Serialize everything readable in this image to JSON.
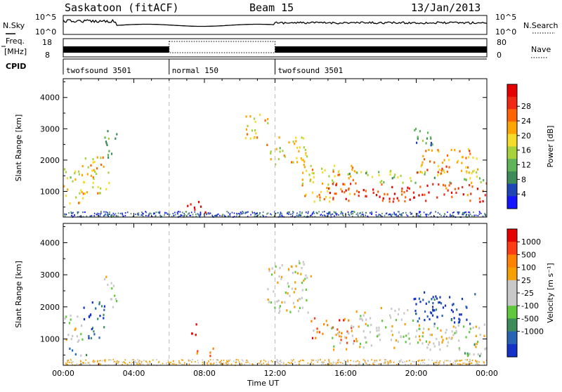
{
  "header": {
    "title": "Saskatoon (fitACF)",
    "beam": "Beam 15",
    "date": "13/Jan/2013"
  },
  "top_strip": {
    "nsky_label": "N.Sky",
    "nsearch_label": "N.Search",
    "nsky_ticks": [
      "10^5",
      "10^0"
    ],
    "nsearch_ticks": [
      "10^5",
      "10^0"
    ],
    "freq_label": "Freq.",
    "freq_unit": "[MHz]",
    "freq_ticks": [
      "18",
      "8"
    ],
    "nave_label": "Nave",
    "nave_ticks": [
      "80",
      "0"
    ],
    "cpid_label": "CPID",
    "cpid_segments": [
      {
        "name": "twofsound 3501",
        "start_hr": 0,
        "end_hr": 6
      },
      {
        "name": "normal 150",
        "start_hr": 6,
        "end_hr": 12
      },
      {
        "name": "twofsound 3501",
        "start_hr": 12,
        "end_hr": 24
      }
    ]
  },
  "x_axis": {
    "label": "Time UT",
    "tick_labels": [
      "00:00",
      "04:00",
      "08:00",
      "12:00",
      "16:00",
      "20:00",
      "00:00"
    ]
  },
  "chart_data": [
    {
      "type": "heatmap",
      "name": "power",
      "ylabel": "Slant Range [km]",
      "ylim": [
        180,
        4600
      ],
      "xlim_hours": [
        0,
        24
      ],
      "y_ticks": [
        1000,
        2000,
        3000,
        4000
      ],
      "colorbar_label": "Power [dB]",
      "colorbar_ticks": [
        "4",
        "8",
        "12",
        "16",
        "20",
        "24",
        "28"
      ],
      "colorbar_colors": [
        "#1414ff",
        "#1e46b4",
        "#3c8c5a",
        "#5fb45a",
        "#a8d23c",
        "#f5dc28",
        "#ffa500",
        "#ff6400",
        "#f02814",
        "#e60000"
      ],
      "dashed_vlines_hours": [
        6,
        12
      ],
      "regions": [
        {
          "t0": 0.0,
          "t1": 1.2,
          "r0": 600,
          "r1": 1800,
          "level": 0.55
        },
        {
          "t0": 1.0,
          "t1": 2.6,
          "r0": 900,
          "r1": 2200,
          "level": 0.6
        },
        {
          "t0": 2.3,
          "t1": 3.0,
          "r0": 2000,
          "r1": 3000,
          "level": 0.3
        },
        {
          "t0": 7.0,
          "t1": 8.1,
          "r0": 350,
          "r1": 750,
          "level": 0.95
        },
        {
          "t0": 10.2,
          "t1": 11.6,
          "r0": 2700,
          "r1": 3500,
          "level": 0.6
        },
        {
          "t0": 11.5,
          "t1": 13.8,
          "r0": 1800,
          "r1": 2800,
          "level": 0.55
        },
        {
          "t0": 13.5,
          "t1": 16.5,
          "r0": 700,
          "r1": 1900,
          "level": 0.6
        },
        {
          "t0": 15.0,
          "t1": 24.0,
          "r0": 700,
          "r1": 1300,
          "level": 0.85
        },
        {
          "t0": 16.0,
          "t1": 24.0,
          "r0": 1300,
          "r1": 1700,
          "level": 0.45
        },
        {
          "t0": 20.0,
          "t1": 23.5,
          "r0": 1600,
          "r1": 2400,
          "level": 0.7
        },
        {
          "t0": 19.5,
          "t1": 21.0,
          "r0": 2500,
          "r1": 3100,
          "level": 0.3
        }
      ]
    },
    {
      "type": "heatmap",
      "name": "velocity",
      "ylabel": "Slant Range [km]",
      "ylim": [
        180,
        4600
      ],
      "xlim_hours": [
        0,
        24
      ],
      "y_ticks": [
        1000,
        2000,
        3000,
        4000
      ],
      "colorbar_label": "Velocity [m s⁻¹]",
      "colorbar_ticks": [
        "1000",
        "500",
        "100",
        "25",
        "-25",
        "-100",
        "-500",
        "-1000"
      ],
      "colorbar_colors": [
        "#1432c8",
        "#2864b4",
        "#3c8c5a",
        "#5fc83c",
        "#c8c8c8",
        "#c8c8c8",
        "#f5a000",
        "#ff8200",
        "#ff3c14",
        "#e60000"
      ],
      "dashed_vlines_hours": [
        6,
        12
      ],
      "regions": [
        {
          "t0": 0.0,
          "t1": 1.2,
          "r0": 900,
          "r1": 1800,
          "level": 0.5
        },
        {
          "t0": 0.3,
          "t1": 1.3,
          "r0": 500,
          "r1": 800,
          "level": 0.3
        },
        {
          "t0": 1.0,
          "t1": 2.3,
          "r0": 1000,
          "r1": 2200,
          "level": 0.15
        },
        {
          "t0": 2.3,
          "t1": 3.0,
          "r0": 2000,
          "r1": 3000,
          "level": 0.5
        },
        {
          "t0": 7.1,
          "t1": 7.6,
          "r0": 1000,
          "r1": 1500,
          "level": 0.9
        },
        {
          "t0": 7.5,
          "t1": 8.5,
          "r0": 450,
          "r1": 750,
          "level": 0.72
        },
        {
          "t0": 11.5,
          "t1": 14.0,
          "r0": 1800,
          "r1": 3500,
          "level": 0.5
        },
        {
          "t0": 14.0,
          "t1": 16.5,
          "r0": 900,
          "r1": 1700,
          "level": 0.75
        },
        {
          "t0": 15.0,
          "t1": 24.0,
          "r0": 700,
          "r1": 1500,
          "level": 0.5
        },
        {
          "t0": 16.5,
          "t1": 20.0,
          "r0": 1600,
          "r1": 2000,
          "level": 0.5
        },
        {
          "t0": 19.5,
          "t1": 23.3,
          "r0": 1500,
          "r1": 2500,
          "level": 0.05
        },
        {
          "t0": 22.0,
          "t1": 24.0,
          "r0": 500,
          "r1": 900,
          "level": 0.32
        }
      ]
    }
  ]
}
